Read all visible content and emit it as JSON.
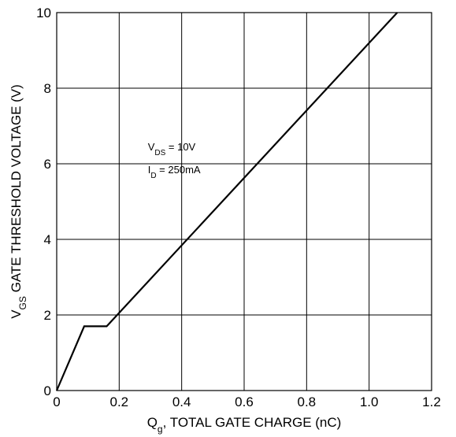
{
  "chart_data": {
    "type": "line",
    "xlabel": {
      "main": "Q",
      "sub": "g",
      "rest": ", TOTAL GATE CHARGE (nC)"
    },
    "ylabel": {
      "main": "V",
      "sub": "GS",
      "rest": " GATE THRESHOLD VOLTAGE (V)"
    },
    "xlim": [
      0,
      1.2
    ],
    "ylim": [
      0,
      10
    ],
    "xticks": [
      0,
      0.2,
      0.4,
      0.6,
      0.8,
      1.0,
      1.2
    ],
    "xtick_labels": [
      "0",
      "0.2",
      "0.4",
      "0.6",
      "0.8",
      "1.0",
      "1.2"
    ],
    "yticks": [
      0,
      2,
      4,
      6,
      8,
      10
    ],
    "ytick_labels": [
      "0",
      "2",
      "4",
      "6",
      "8",
      "10"
    ],
    "grid": true,
    "series": [
      {
        "x": [
          0,
          0.088,
          0.16,
          1.09
        ],
        "y": [
          0,
          1.7,
          1.7,
          10
        ]
      }
    ],
    "annotations": [
      {
        "main": "V",
        "sub": "DS",
        "rest": " = 10V",
        "x": 0.385,
        "y": 6.35
      },
      {
        "main": "I",
        "sub": "D",
        "rest": " = 250mA",
        "x": 0.385,
        "y": 5.75
      }
    ]
  }
}
